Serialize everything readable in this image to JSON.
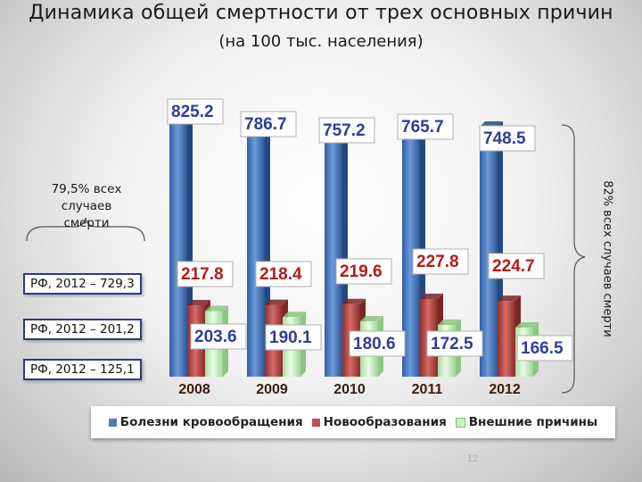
{
  "title": "Динамика общей смертности от трех основных причин",
  "subtitle": "(на 100 тыс. населения)",
  "note_left": [
    "79,5% всех",
    "случаев",
    "смерти"
  ],
  "note_right": "82% всех случаев смерти",
  "rf_boxes": [
    "РФ, 2012 – 729,3",
    "РФ, 2012 – 201,2",
    "РФ, 2012 – 125,1"
  ],
  "page_number": "12",
  "colors": {
    "blue": "#4a7cc4",
    "red": "#c0504d",
    "green": "#c9f2c2",
    "year_label": "#3c1d0a",
    "value_label": "#2f3d99"
  },
  "chart_data": {
    "type": "bar",
    "categories": [
      "2008",
      "2009",
      "2010",
      "2011",
      "2012"
    ],
    "series": [
      {
        "name": "Болезни кровообращения",
        "values": [
          825.2,
          786.7,
          757.2,
          765.7,
          748.5
        ],
        "labels": [
          "825.2",
          "786.7",
          "757.2",
          "765.7",
          "748.5"
        ],
        "color": "#4a7cc4"
      },
      {
        "name": "Новообразования",
        "values": [
          217.8,
          218.4,
          219.6,
          227.8,
          224.7
        ],
        "labels": [
          "217.8",
          "218.4",
          "219.6",
          "227.8",
          "224.7"
        ],
        "color": "#c0504d"
      },
      {
        "name": "Внешние причины",
        "values": [
          203.6,
          190.1,
          180.6,
          172.5,
          166.5
        ],
        "labels": [
          "203.6",
          "190.1",
          "180.6",
          "172.5",
          "166.5"
        ],
        "color": "#c9f2c2"
      }
    ],
    "legend_position": "bottom",
    "grid": false
  }
}
